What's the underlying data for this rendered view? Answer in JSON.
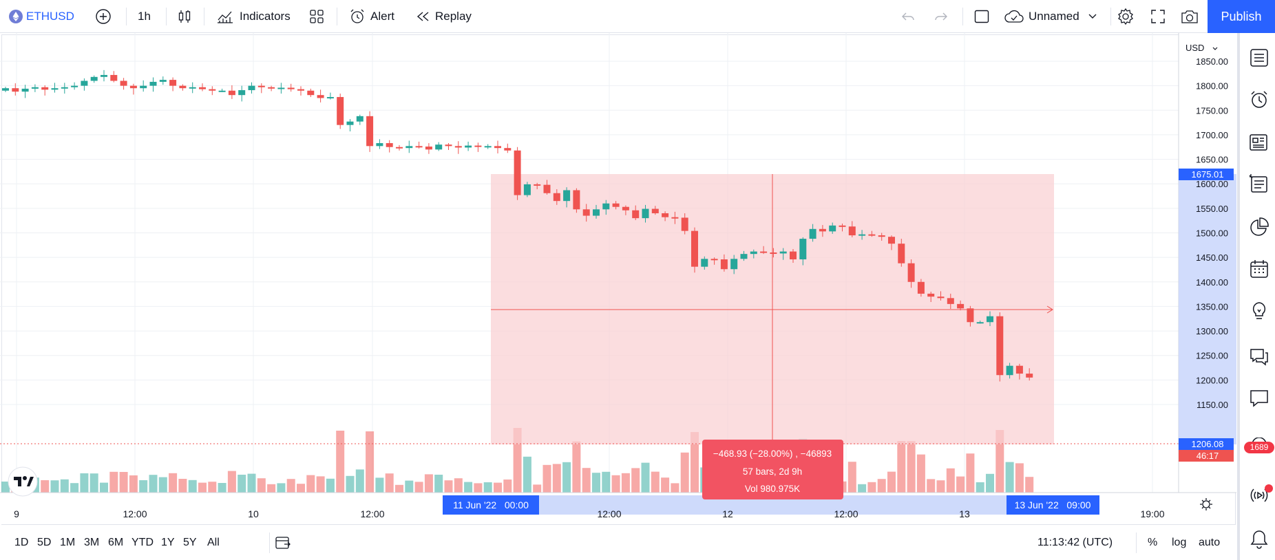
{
  "topbar": {
    "symbol": "ETHUSD",
    "interval": "1h",
    "indicators_label": "Indicators",
    "alert_label": "Alert",
    "replay_label": "Replay",
    "layout_name": "Unnamed",
    "publish_label": "Publish"
  },
  "chart": {
    "currency": "USD",
    "price_ticks": [
      "1850.00",
      "1800.00",
      "1750.00",
      "1700.00",
      "1650.00",
      "1600.00",
      "1550.00",
      "1500.00",
      "1450.00",
      "1400.00",
      "1350.00",
      "1300.00",
      "1250.00",
      "1200.00",
      "1150.00"
    ],
    "time_ticks": [
      "9",
      "12:00",
      "10",
      "12:00",
      "12:00",
      "12",
      "12:00",
      "13",
      "19:00"
    ],
    "range_start_label": "11 Jun '22   00:00",
    "range_end_label": "13 Jun '22   09:00",
    "top_price_label": "1675.01",
    "current_price_label": "1206.08",
    "countdown_label": "46:17",
    "measure": {
      "line1": "−468.93 (−28.00%) , −46893",
      "line2": "57 bars, 2d 9h",
      "line3": "Vol 980.975K"
    },
    "colors": {
      "up": "#26a69a",
      "down": "#ef5350",
      "accent": "#2962ff",
      "measure_fill": "#f9d0d3"
    },
    "badge_count": "1689"
  },
  "bottombar": {
    "ranges": [
      "1D",
      "5D",
      "1M",
      "3M",
      "6M",
      "YTD",
      "1Y",
      "5Y",
      "All"
    ],
    "clock": "11:13:42 (UTC)",
    "percent_label": "%",
    "log_label": "log",
    "auto_label": "auto"
  }
}
